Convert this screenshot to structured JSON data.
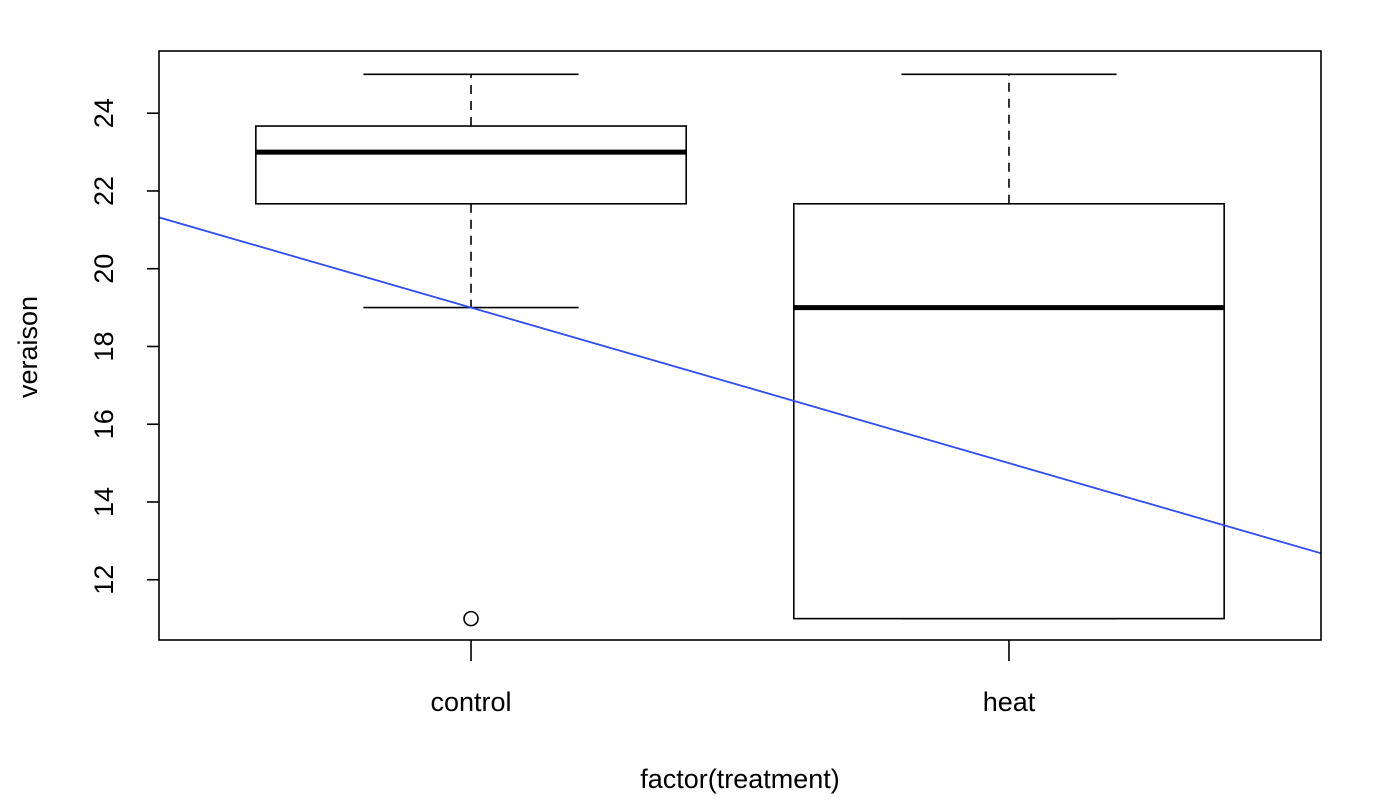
{
  "chart_data": {
    "type": "box",
    "xlabel": "factor(treatment)",
    "ylabel": "veraison",
    "ylim": [
      10.45,
      25.6
    ],
    "yticks": [
      12,
      14,
      16,
      18,
      20,
      22,
      24
    ],
    "categories": [
      "control",
      "heat"
    ],
    "boxes": [
      {
        "category": "control",
        "whisker_low": 19,
        "q1": 21.67,
        "median": 23,
        "q3": 23.67,
        "whisker_high": 25,
        "outliers": [
          11
        ]
      },
      {
        "category": "heat",
        "whisker_low": 11,
        "q1": 11,
        "median": 19,
        "q3": 21.67,
        "whisker_high": 25,
        "outliers": []
      }
    ],
    "regression_line": {
      "intercept": 23.0,
      "slope": -4.0,
      "color": "#2f4df2"
    },
    "grid": false,
    "box_color": "#000000"
  }
}
